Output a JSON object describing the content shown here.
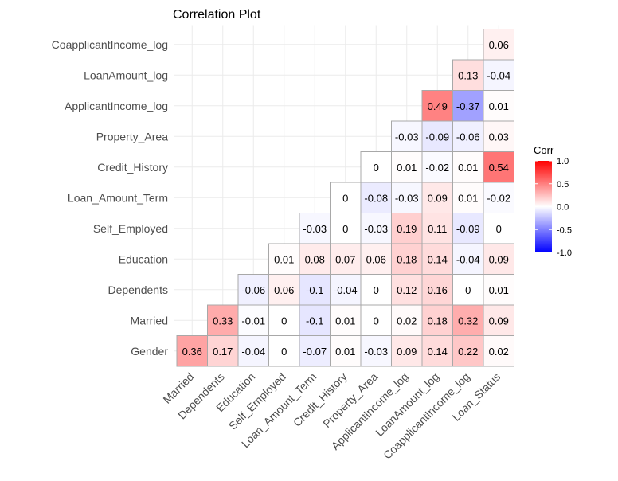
{
  "chart_data": {
    "type": "heatmap",
    "title": "Correlation Plot",
    "x_categories": [
      "Married",
      "Dependents",
      "Education",
      "Self_Employed",
      "Loan_Amount_Term",
      "Credit_History",
      "Property_Area",
      "ApplicantIncome_log",
      "LoanAmount_log",
      "CoapplicantIncome_log",
      "Loan_Status"
    ],
    "y_categories": [
      "Gender",
      "Married",
      "Dependents",
      "Education",
      "Self_Employed",
      "Loan_Amount_Term",
      "Credit_History",
      "Property_Area",
      "ApplicantIncome_log",
      "LoanAmount_log",
      "CoapplicantIncome_log"
    ],
    "cells": [
      {
        "x": "Married",
        "y": "Gender",
        "value": 0.36,
        "label": "0.36"
      },
      {
        "x": "Dependents",
        "y": "Gender",
        "value": 0.17,
        "label": "0.17"
      },
      {
        "x": "Education",
        "y": "Gender",
        "value": -0.04,
        "label": "-0.04"
      },
      {
        "x": "Self_Employed",
        "y": "Gender",
        "value": 0,
        "label": "0"
      },
      {
        "x": "Loan_Amount_Term",
        "y": "Gender",
        "value": -0.07,
        "label": "-0.07"
      },
      {
        "x": "Credit_History",
        "y": "Gender",
        "value": 0.01,
        "label": "0.01"
      },
      {
        "x": "Property_Area",
        "y": "Gender",
        "value": -0.03,
        "label": "-0.03"
      },
      {
        "x": "ApplicantIncome_log",
        "y": "Gender",
        "value": 0.09,
        "label": "0.09"
      },
      {
        "x": "LoanAmount_log",
        "y": "Gender",
        "value": 0.14,
        "label": "0.14"
      },
      {
        "x": "CoapplicantIncome_log",
        "y": "Gender",
        "value": 0.22,
        "label": "0.22"
      },
      {
        "x": "Loan_Status",
        "y": "Gender",
        "value": 0.02,
        "label": "0.02"
      },
      {
        "x": "Dependents",
        "y": "Married",
        "value": 0.33,
        "label": "0.33"
      },
      {
        "x": "Education",
        "y": "Married",
        "value": -0.01,
        "label": "-0.01"
      },
      {
        "x": "Self_Employed",
        "y": "Married",
        "value": 0,
        "label": "0"
      },
      {
        "x": "Loan_Amount_Term",
        "y": "Married",
        "value": -0.1,
        "label": "-0.1"
      },
      {
        "x": "Credit_History",
        "y": "Married",
        "value": 0.01,
        "label": "0.01"
      },
      {
        "x": "Property_Area",
        "y": "Married",
        "value": 0,
        "label": "0"
      },
      {
        "x": "ApplicantIncome_log",
        "y": "Married",
        "value": 0.02,
        "label": "0.02"
      },
      {
        "x": "LoanAmount_log",
        "y": "Married",
        "value": 0.18,
        "label": "0.18"
      },
      {
        "x": "CoapplicantIncome_log",
        "y": "Married",
        "value": 0.32,
        "label": "0.32"
      },
      {
        "x": "Loan_Status",
        "y": "Married",
        "value": 0.09,
        "label": "0.09"
      },
      {
        "x": "Education",
        "y": "Dependents",
        "value": -0.06,
        "label": "-0.06"
      },
      {
        "x": "Self_Employed",
        "y": "Dependents",
        "value": 0.06,
        "label": "0.06"
      },
      {
        "x": "Loan_Amount_Term",
        "y": "Dependents",
        "value": -0.1,
        "label": "-0.1"
      },
      {
        "x": "Credit_History",
        "y": "Dependents",
        "value": -0.04,
        "label": "-0.04"
      },
      {
        "x": "Property_Area",
        "y": "Dependents",
        "value": 0,
        "label": "0"
      },
      {
        "x": "ApplicantIncome_log",
        "y": "Dependents",
        "value": 0.12,
        "label": "0.12"
      },
      {
        "x": "LoanAmount_log",
        "y": "Dependents",
        "value": 0.16,
        "label": "0.16"
      },
      {
        "x": "CoapplicantIncome_log",
        "y": "Dependents",
        "value": 0,
        "label": "0"
      },
      {
        "x": "Loan_Status",
        "y": "Dependents",
        "value": 0.01,
        "label": "0.01"
      },
      {
        "x": "Self_Employed",
        "y": "Education",
        "value": 0.01,
        "label": "0.01"
      },
      {
        "x": "Loan_Amount_Term",
        "y": "Education",
        "value": 0.08,
        "label": "0.08"
      },
      {
        "x": "Credit_History",
        "y": "Education",
        "value": 0.07,
        "label": "0.07"
      },
      {
        "x": "Property_Area",
        "y": "Education",
        "value": 0.06,
        "label": "0.06"
      },
      {
        "x": "ApplicantIncome_log",
        "y": "Education",
        "value": 0.18,
        "label": "0.18"
      },
      {
        "x": "LoanAmount_log",
        "y": "Education",
        "value": 0.14,
        "label": "0.14"
      },
      {
        "x": "CoapplicantIncome_log",
        "y": "Education",
        "value": -0.04,
        "label": "-0.04"
      },
      {
        "x": "Loan_Status",
        "y": "Education",
        "value": 0.09,
        "label": "0.09"
      },
      {
        "x": "Loan_Amount_Term",
        "y": "Self_Employed",
        "value": -0.03,
        "label": "-0.03"
      },
      {
        "x": "Credit_History",
        "y": "Self_Employed",
        "value": 0,
        "label": "0"
      },
      {
        "x": "Property_Area",
        "y": "Self_Employed",
        "value": -0.03,
        "label": "-0.03"
      },
      {
        "x": "ApplicantIncome_log",
        "y": "Self_Employed",
        "value": 0.19,
        "label": "0.19"
      },
      {
        "x": "LoanAmount_log",
        "y": "Self_Employed",
        "value": 0.11,
        "label": "0.11"
      },
      {
        "x": "CoapplicantIncome_log",
        "y": "Self_Employed",
        "value": -0.09,
        "label": "-0.09"
      },
      {
        "x": "Loan_Status",
        "y": "Self_Employed",
        "value": 0,
        "label": "0"
      },
      {
        "x": "Credit_History",
        "y": "Loan_Amount_Term",
        "value": 0,
        "label": "0"
      },
      {
        "x": "Property_Area",
        "y": "Loan_Amount_Term",
        "value": -0.08,
        "label": "-0.08"
      },
      {
        "x": "ApplicantIncome_log",
        "y": "Loan_Amount_Term",
        "value": -0.03,
        "label": "-0.03"
      },
      {
        "x": "LoanAmount_log",
        "y": "Loan_Amount_Term",
        "value": 0.09,
        "label": "0.09"
      },
      {
        "x": "CoapplicantIncome_log",
        "y": "Loan_Amount_Term",
        "value": 0.01,
        "label": "0.01"
      },
      {
        "x": "Loan_Status",
        "y": "Loan_Amount_Term",
        "value": -0.02,
        "label": "-0.02"
      },
      {
        "x": "Property_Area",
        "y": "Credit_History",
        "value": 0,
        "label": "0"
      },
      {
        "x": "ApplicantIncome_log",
        "y": "Credit_History",
        "value": 0.01,
        "label": "0.01"
      },
      {
        "x": "LoanAmount_log",
        "y": "Credit_History",
        "value": -0.02,
        "label": "-0.02"
      },
      {
        "x": "CoapplicantIncome_log",
        "y": "Credit_History",
        "value": 0.01,
        "label": "0.01"
      },
      {
        "x": "Loan_Status",
        "y": "Credit_History",
        "value": 0.54,
        "label": "0.54"
      },
      {
        "x": "ApplicantIncome_log",
        "y": "Property_Area",
        "value": -0.03,
        "label": "-0.03"
      },
      {
        "x": "LoanAmount_log",
        "y": "Property_Area",
        "value": -0.09,
        "label": "-0.09"
      },
      {
        "x": "CoapplicantIncome_log",
        "y": "Property_Area",
        "value": -0.06,
        "label": "-0.06"
      },
      {
        "x": "Loan_Status",
        "y": "Property_Area",
        "value": 0.03,
        "label": "0.03"
      },
      {
        "x": "LoanAmount_log",
        "y": "ApplicantIncome_log",
        "value": 0.49,
        "label": "0.49"
      },
      {
        "x": "CoapplicantIncome_log",
        "y": "ApplicantIncome_log",
        "value": -0.37,
        "label": "-0.37"
      },
      {
        "x": "Loan_Status",
        "y": "ApplicantIncome_log",
        "value": 0.01,
        "label": "0.01"
      },
      {
        "x": "CoapplicantIncome_log",
        "y": "LoanAmount_log",
        "value": 0.13,
        "label": "0.13"
      },
      {
        "x": "Loan_Status",
        "y": "LoanAmount_log",
        "value": -0.04,
        "label": "-0.04"
      },
      {
        "x": "Loan_Status",
        "y": "CoapplicantIncome_log",
        "value": 0.06,
        "label": "0.06"
      }
    ],
    "value_range": [
      -1,
      1
    ],
    "legend": {
      "title": "Corr",
      "position": "right",
      "tick_labels": [
        "1.0",
        "0.5",
        "0.0",
        "-0.5",
        "-1.0"
      ],
      "tick_values": [
        1,
        0.5,
        0,
        -0.5,
        -1
      ],
      "colors": {
        "low": "#0000ff",
        "mid": "#ffffff",
        "high": "#ff0000"
      }
    },
    "grid": true
  }
}
